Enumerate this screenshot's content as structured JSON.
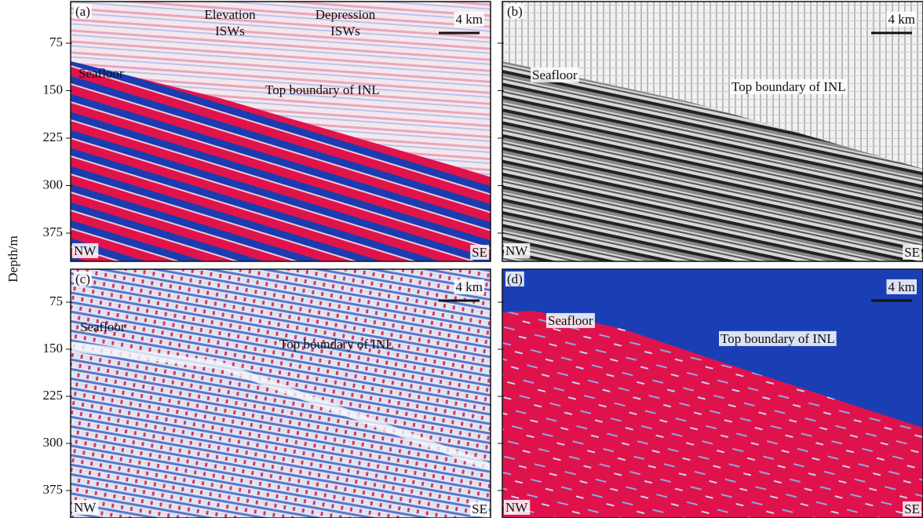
{
  "y_axis": {
    "label": "Depth/m",
    "ticks": [
      "75",
      "150",
      "225",
      "300",
      "375"
    ]
  },
  "panels": [
    {
      "label": "(a)",
      "scale": "4 km",
      "seafloor": "Seafloor",
      "boundary": "Top boundary of INL",
      "left": "NW",
      "right": "SE",
      "features": [
        [
          "Elevation",
          "ISWs"
        ],
        [
          "Depression",
          "ISWs"
        ]
      ]
    },
    {
      "label": "(b)",
      "scale": "4 km",
      "seafloor": "Seafloor",
      "boundary": "Top boundary of INL",
      "left": "NW",
      "right": "SE"
    },
    {
      "label": "(c)",
      "scale": "4 km",
      "seafloor": "Seafloor",
      "boundary": "Top boundary of INL",
      "left": "NW",
      "right": "SE"
    },
    {
      "label": "(d)",
      "scale": "4 km",
      "seafloor": "Seafloor",
      "boundary": "Top boundary of INL",
      "left": "NW",
      "right": "SE"
    }
  ]
}
